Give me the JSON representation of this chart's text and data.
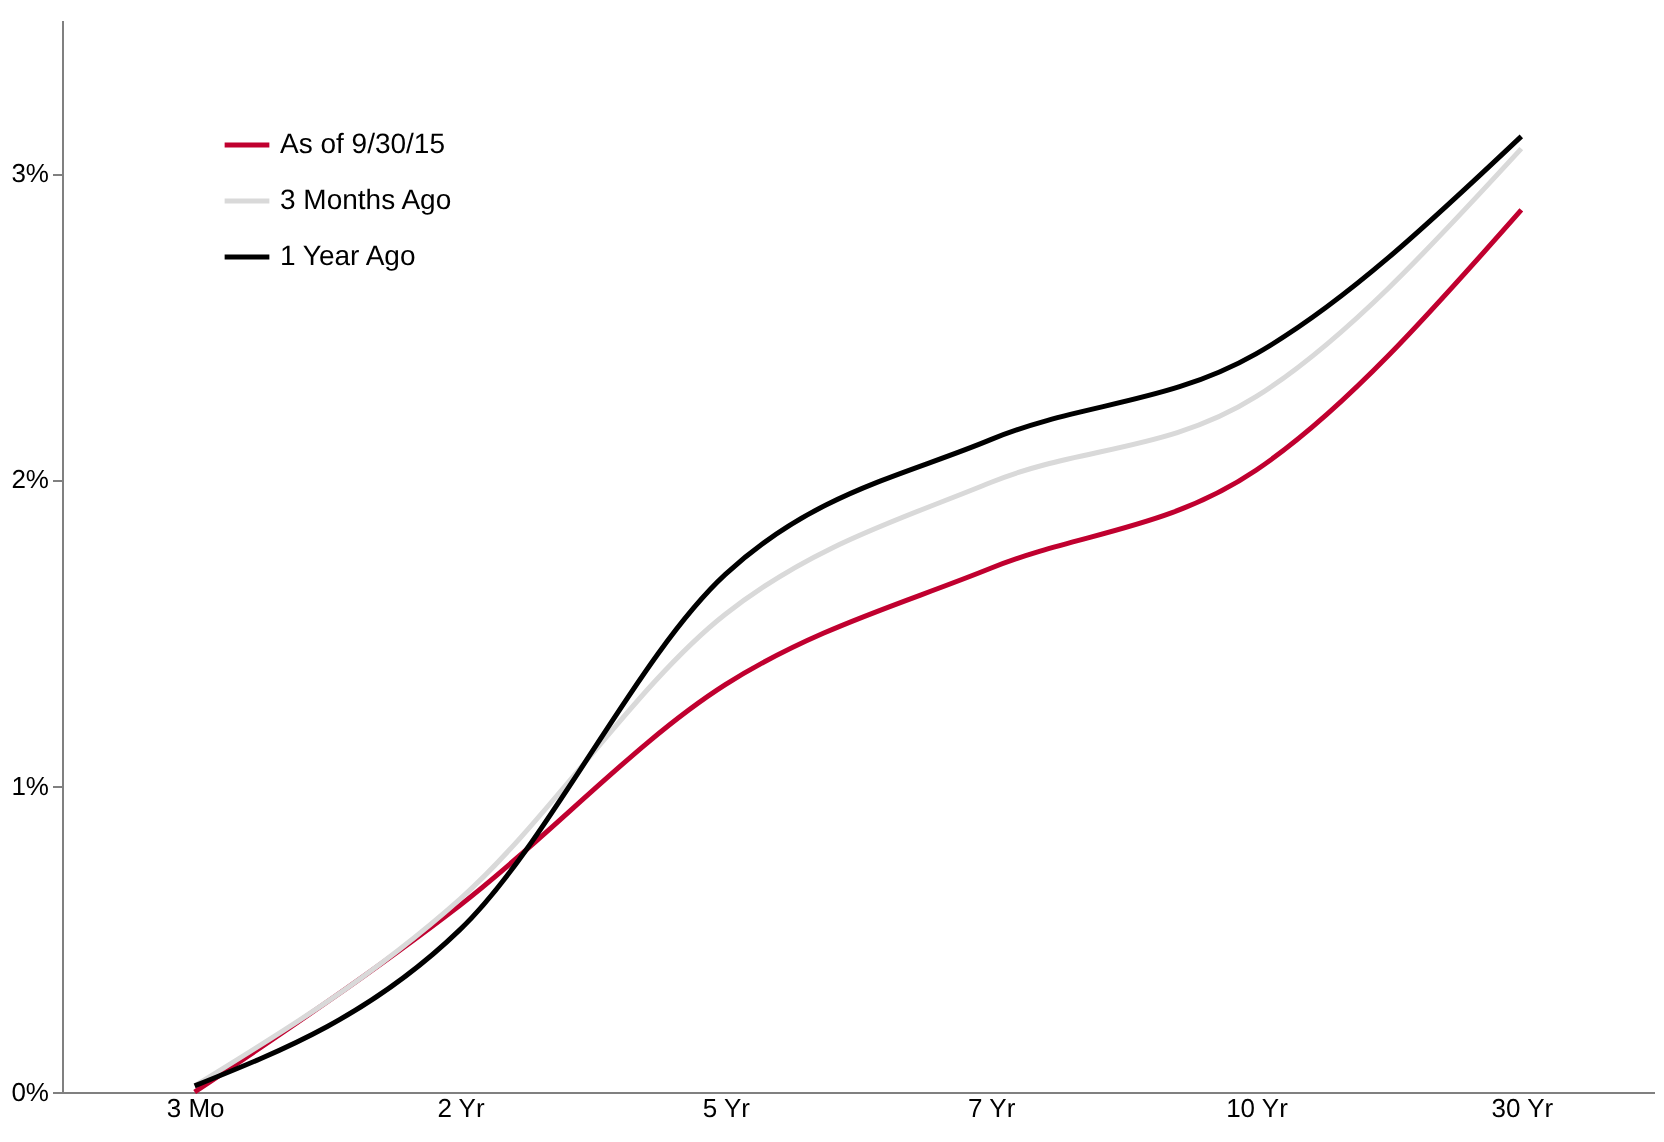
{
  "chart_data": {
    "type": "line",
    "categories": [
      "3 Mo",
      "2 Yr",
      "5 Yr",
      "7 Yr",
      "10 Yr",
      "30 Yr"
    ],
    "series": [
      {
        "name": "As of 9/30/15",
        "color": "#c0002f",
        "values": [
          0.0,
          0.61,
          1.33,
          1.71,
          2.03,
          2.88
        ]
      },
      {
        "name": "3 Months Ago",
        "color": "#d9d9d9",
        "values": [
          0.02,
          0.63,
          1.56,
          1.99,
          2.27,
          3.08
        ]
      },
      {
        "name": "1 Year Ago",
        "color": "#000000",
        "values": [
          0.02,
          0.53,
          1.69,
          2.13,
          2.41,
          3.12
        ]
      }
    ],
    "ylim": [
      0,
      3.5
    ],
    "yticks": [
      {
        "value": 0,
        "label": "0%"
      },
      {
        "value": 1,
        "label": "1%"
      },
      {
        "value": 2,
        "label": "2%"
      },
      {
        "value": 3,
        "label": "3%"
      }
    ],
    "grid": false,
    "legend": "top left",
    "marker": "none",
    "line_style": "solid"
  }
}
